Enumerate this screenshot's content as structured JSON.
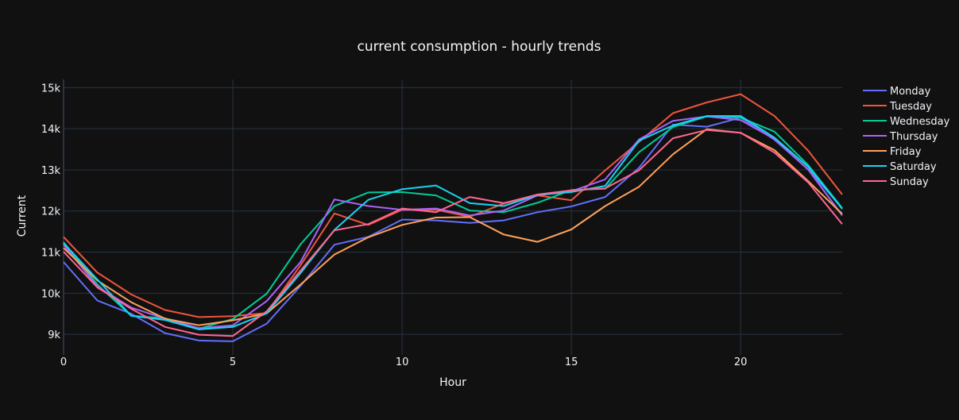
{
  "chart_data": {
    "type": "line",
    "title": "current consumption - hourly trends",
    "xlabel": "Hour",
    "ylabel": "Current",
    "xlim": [
      0,
      23
    ],
    "ylim": [
      8500,
      15200
    ],
    "x_ticks": [
      0,
      5,
      10,
      15,
      20
    ],
    "y_ticks": [
      9000,
      10000,
      11000,
      12000,
      13000,
      14000,
      15000
    ],
    "y_tick_labels": [
      "9k",
      "10k",
      "11k",
      "12k",
      "13k",
      "14k",
      "15k"
    ],
    "grid": true,
    "legend_position": "right",
    "theme": {
      "background": "#111111",
      "grid": "#283442",
      "text": "#f2f5fa"
    },
    "x": [
      0,
      1,
      2,
      3,
      4,
      5,
      6,
      7,
      8,
      9,
      10,
      11,
      12,
      13,
      14,
      15,
      16,
      17,
      18,
      19,
      20,
      21,
      22,
      23
    ],
    "series": [
      {
        "name": "Monday",
        "color": "#636efa",
        "values": [
          10760,
          9820,
          9500,
          9030,
          8850,
          8830,
          9260,
          10180,
          11180,
          11370,
          11790,
          11770,
          11710,
          11770,
          11970,
          12110,
          12340,
          13050,
          14100,
          14050,
          14270,
          13730,
          13010,
          12070
        ]
      },
      {
        "name": "Tuesday",
        "color": "#EF553B",
        "values": [
          11370,
          10500,
          9970,
          9590,
          9420,
          9440,
          9520,
          10680,
          11940,
          11660,
          12030,
          12030,
          11860,
          12180,
          12380,
          12260,
          12990,
          13680,
          14380,
          14640,
          14840,
          14310,
          13460,
          12400
        ]
      },
      {
        "name": "Wednesday",
        "color": "#00cc96",
        "values": [
          11240,
          10210,
          9450,
          9390,
          9140,
          9370,
          9990,
          11190,
          12120,
          12450,
          12460,
          12380,
          12010,
          11970,
          12200,
          12510,
          12540,
          13430,
          14040,
          14300,
          14270,
          13930,
          13110,
          12070
        ]
      },
      {
        "name": "Thursday",
        "color": "#ab63fa",
        "values": [
          11180,
          10160,
          9650,
          9380,
          9150,
          9220,
          9810,
          10760,
          12280,
          12120,
          12030,
          12060,
          11890,
          12010,
          12380,
          12480,
          12770,
          13740,
          14190,
          14300,
          14210,
          13750,
          13000,
          11890
        ]
      },
      {
        "name": "Friday",
        "color": "#FFA15A",
        "values": [
          11100,
          10310,
          9780,
          9380,
          9220,
          9340,
          9510,
          10210,
          10940,
          11360,
          11660,
          11840,
          11850,
          11430,
          11250,
          11550,
          12120,
          12590,
          13380,
          13990,
          13900,
          13480,
          12720,
          11930
        ]
      },
      {
        "name": "Saturday",
        "color": "#19d3f3",
        "values": [
          11220,
          10330,
          9450,
          9350,
          9120,
          9180,
          9510,
          10490,
          11540,
          12270,
          12530,
          12620,
          12190,
          12120,
          12390,
          12460,
          12610,
          13710,
          14080,
          14310,
          14310,
          13780,
          13070,
          12050
        ]
      },
      {
        "name": "Sunday",
        "color": "#FF6692",
        "values": [
          11010,
          10140,
          9620,
          9180,
          8990,
          8960,
          9560,
          10550,
          11530,
          11680,
          12060,
          11970,
          12340,
          12190,
          12400,
          12500,
          12550,
          12990,
          13770,
          13970,
          13900,
          13420,
          12690,
          11680
        ]
      }
    ]
  }
}
